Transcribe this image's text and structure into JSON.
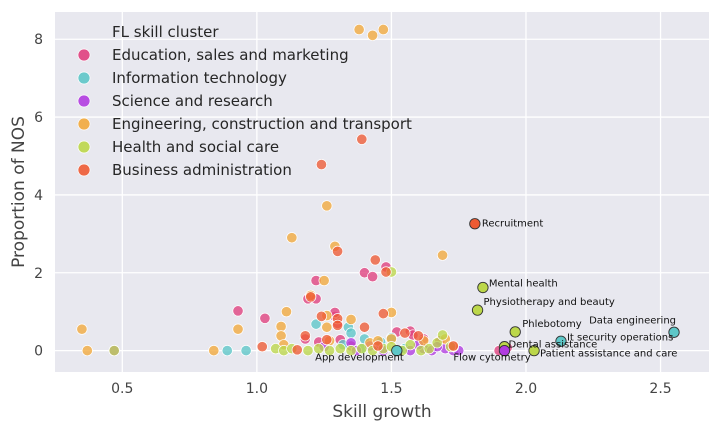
{
  "chart_data": {
    "type": "scatter",
    "xlabel": "Skill growth",
    "ylabel": "Proportion of NOS",
    "xlim": [
      0.25,
      2.68
    ],
    "ylim": [
      -0.55,
      8.7
    ],
    "xticks": [
      0.5,
      1.0,
      1.5,
      2.0,
      2.5
    ],
    "xtick_labels": [
      "0.5",
      "1.0",
      "1.5",
      "2.0",
      "2.5"
    ],
    "yticks": [
      0,
      2,
      4,
      6,
      8
    ],
    "ytick_labels": [
      "0",
      "2",
      "4",
      "6",
      "8"
    ],
    "grid": true,
    "background": "#e8e8ef",
    "legend": {
      "title": "FL skill cluster",
      "placement": "top-left"
    },
    "series": [
      {
        "name": "Education, sales and marketing",
        "color": "#e0407e",
        "points": [
          [
            0.93,
            1.02
          ],
          [
            1.03,
            0.83
          ],
          [
            1.19,
            1.33
          ],
          [
            1.22,
            1.33
          ],
          [
            1.22,
            1.8
          ],
          [
            1.29,
            0.88
          ],
          [
            1.29,
            0.98
          ],
          [
            1.3,
            0.7
          ],
          [
            1.4,
            2.0
          ],
          [
            1.43,
            1.9
          ],
          [
            1.48,
            2.15
          ],
          [
            1.52,
            0.48
          ],
          [
            1.57,
            0.5
          ],
          [
            1.58,
            0.4
          ],
          [
            1.18,
            0.3
          ],
          [
            1.23,
            0.22
          ],
          [
            1.31,
            0.28
          ],
          [
            1.62,
            0.3
          ],
          [
            1.68,
            0.25
          ],
          [
            1.9,
            0.0
          ],
          [
            1.35,
            0.12
          ],
          [
            1.45,
            0.1
          ],
          [
            1.93,
            0.08
          ]
        ]
      },
      {
        "name": "Information technology",
        "color": "#5ec7c8",
        "points": [
          [
            2.55,
            0.47
          ],
          [
            2.13,
            0.24
          ],
          [
            1.52,
            0.0
          ],
          [
            0.89,
            0.0
          ],
          [
            0.96,
            0.0
          ],
          [
            1.22,
            0.68
          ],
          [
            1.34,
            0.6
          ],
          [
            1.35,
            0.45
          ],
          [
            1.4,
            0.3
          ],
          [
            1.46,
            0.22
          ],
          [
            1.32,
            0.15
          ],
          [
            1.39,
            0.05
          ],
          [
            1.5,
            0.33
          ],
          [
            1.55,
            0.05
          ]
        ]
      },
      {
        "name": "Science and research",
        "color": "#b13ce0",
        "points": [
          [
            1.92,
            0.0
          ],
          [
            0.47,
            0.0
          ],
          [
            1.35,
            0.2
          ],
          [
            1.42,
            0.12
          ],
          [
            1.57,
            0.0
          ],
          [
            1.62,
            0.05
          ],
          [
            1.65,
            0.0
          ],
          [
            1.7,
            0.05
          ],
          [
            1.73,
            0.0
          ],
          [
            1.75,
            0.0
          ],
          [
            1.47,
            0.0
          ],
          [
            1.25,
            0.1
          ],
          [
            1.37,
            0.0
          ],
          [
            1.6,
            0.15
          ],
          [
            1.67,
            0.1
          ]
        ]
      },
      {
        "name": "Engineering, construction and transport",
        "color": "#f2a93b",
        "points": [
          [
            1.38,
            8.25
          ],
          [
            1.43,
            8.1
          ],
          [
            1.47,
            8.25
          ],
          [
            1.26,
            3.72
          ],
          [
            1.13,
            2.9
          ],
          [
            1.29,
            2.68
          ],
          [
            1.69,
            2.45
          ],
          [
            1.25,
            1.8
          ],
          [
            1.11,
            1.0
          ],
          [
            1.2,
            1.42
          ],
          [
            1.26,
            0.9
          ],
          [
            1.35,
            0.8
          ],
          [
            1.5,
            0.98
          ],
          [
            0.35,
            0.55
          ],
          [
            0.37,
            0.0
          ],
          [
            0.84,
            0.0
          ],
          [
            0.93,
            0.55
          ],
          [
            1.09,
            0.62
          ],
          [
            1.09,
            0.38
          ],
          [
            1.26,
            0.6
          ],
          [
            1.42,
            0.2
          ],
          [
            1.45,
            0.25
          ],
          [
            1.5,
            0.3
          ],
          [
            1.62,
            0.25
          ],
          [
            1.7,
            0.3
          ],
          [
            1.73,
            0.1
          ],
          [
            1.27,
            0.25
          ],
          [
            1.1,
            0.15
          ]
        ]
      },
      {
        "name": "Health and social care",
        "color": "#bcd74a",
        "points": [
          [
            1.84,
            1.62
          ],
          [
            1.82,
            1.04
          ],
          [
            1.96,
            0.48
          ],
          [
            1.92,
            0.1
          ],
          [
            2.03,
            0.0
          ],
          [
            1.5,
            2.02
          ],
          [
            1.07,
            0.05
          ],
          [
            1.1,
            0.0
          ],
          [
            1.13,
            0.05
          ],
          [
            1.19,
            0.0
          ],
          [
            1.23,
            0.05
          ],
          [
            1.27,
            0.0
          ],
          [
            1.31,
            0.05
          ],
          [
            1.35,
            0.0
          ],
          [
            1.39,
            0.05
          ],
          [
            1.43,
            0.0
          ],
          [
            1.47,
            0.05
          ],
          [
            1.5,
            0.1
          ],
          [
            1.54,
            0.0
          ],
          [
            1.57,
            0.15
          ],
          [
            1.61,
            0.0
          ],
          [
            1.64,
            0.05
          ],
          [
            1.67,
            0.2
          ],
          [
            1.69,
            0.4
          ],
          [
            1.72,
            0.1
          ],
          [
            0.47,
            0.0
          ]
        ]
      },
      {
        "name": "Business administration",
        "color": "#ee5b34",
        "points": [
          [
            1.81,
            3.26
          ],
          [
            1.24,
            4.78
          ],
          [
            1.39,
            5.43
          ],
          [
            1.3,
            2.55
          ],
          [
            1.44,
            2.33
          ],
          [
            1.48,
            2.02
          ],
          [
            1.2,
            1.38
          ],
          [
            1.24,
            0.88
          ],
          [
            1.3,
            0.82
          ],
          [
            1.3,
            0.65
          ],
          [
            1.4,
            0.6
          ],
          [
            1.47,
            0.95
          ],
          [
            1.6,
            0.38
          ],
          [
            1.55,
            0.45
          ],
          [
            1.18,
            0.38
          ],
          [
            1.26,
            0.28
          ],
          [
            1.02,
            0.1
          ],
          [
            1.73,
            0.12
          ],
          [
            1.15,
            0.02
          ],
          [
            1.45,
            0.12
          ]
        ]
      }
    ],
    "annotations": [
      {
        "text": "Recruitment",
        "x": 1.81,
        "y": 3.26,
        "dx": 7,
        "dy": 0,
        "anchor": "start"
      },
      {
        "text": "Mental health",
        "x": 1.84,
        "y": 1.62,
        "dx": 6,
        "dy": -4,
        "anchor": "start"
      },
      {
        "text": "Physiotherapy and beauty",
        "x": 1.82,
        "y": 1.04,
        "dx": 6,
        "dy": -8,
        "anchor": "start"
      },
      {
        "text": "Phlebotomy",
        "x": 1.96,
        "y": 0.48,
        "dx": 7,
        "dy": -8,
        "anchor": "start"
      },
      {
        "text": "Data engineering",
        "x": 2.55,
        "y": 0.47,
        "dx": 2,
        "dy": -12,
        "anchor": "end"
      },
      {
        "text": "It security operations",
        "x": 2.13,
        "y": 0.24,
        "dx": 6,
        "dy": -4,
        "anchor": "start"
      },
      {
        "text": "Dental assistance",
        "x": 1.92,
        "y": 0.1,
        "dx": 4,
        "dy": -2,
        "anchor": "start"
      },
      {
        "text": "Patient assistance and care",
        "x": 2.03,
        "y": 0.0,
        "dx": 6,
        "dy": 3,
        "anchor": "start"
      },
      {
        "text": "App development",
        "x": 1.52,
        "y": 0.0,
        "dx": 7,
        "dy": 7,
        "anchor": "end"
      },
      {
        "text": "Flow cytometry",
        "x": 1.73,
        "y": 0.0,
        "dx": 0,
        "dy": 7,
        "anchor": "start"
      }
    ],
    "highlighted_points": [
      {
        "x": 1.81,
        "y": 3.26,
        "color": "#ee5b34"
      },
      {
        "x": 1.84,
        "y": 1.62,
        "color": "#bcd74a"
      },
      {
        "x": 1.82,
        "y": 1.04,
        "color": "#bcd74a"
      },
      {
        "x": 1.96,
        "y": 0.48,
        "color": "#bcd74a"
      },
      {
        "x": 2.55,
        "y": 0.47,
        "color": "#5ec7c8"
      },
      {
        "x": 2.13,
        "y": 0.24,
        "color": "#5ec7c8"
      },
      {
        "x": 1.92,
        "y": 0.1,
        "color": "#bcd74a"
      },
      {
        "x": 2.03,
        "y": 0.0,
        "color": "#bcd74a"
      },
      {
        "x": 1.52,
        "y": 0.0,
        "color": "#5ec7c8"
      },
      {
        "x": 1.92,
        "y": 0.0,
        "color": "#b13ce0"
      }
    ]
  }
}
